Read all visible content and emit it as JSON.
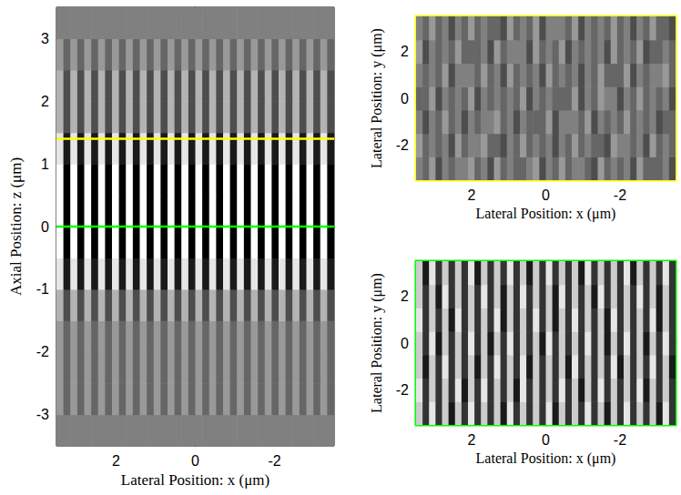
{
  "chart_data": [
    {
      "type": "heatmap",
      "xlabel": "Lateral Position: x (μm)",
      "ylabel": "Axial Position: z (μm)",
      "xlim": [
        3.5,
        -3.5
      ],
      "xticks": [
        2,
        0,
        -2
      ],
      "ylim": [
        -3.5,
        3.5
      ],
      "yticks": [
        -3,
        -2,
        -1,
        0,
        1,
        2,
        3
      ],
      "zlim": [
        0,
        10
      ],
      "grid": false,
      "hlines": [
        {
          "value": 1.4,
          "color": "#ffff00"
        },
        {
          "value": 0,
          "color": "#00ff00"
        }
      ],
      "cells": [
        [
          5,
          5,
          5,
          5,
          5,
          5,
          5,
          5,
          5,
          5,
          5,
          5,
          5,
          5,
          5,
          5,
          5,
          5,
          5,
          5,
          5,
          5,
          5,
          5,
          5,
          5,
          5,
          5,
          5,
          5,
          5,
          5,
          5,
          5,
          5,
          5,
          5,
          5,
          5,
          5
        ],
        [
          6,
          4,
          6,
          4,
          6,
          4,
          6,
          4,
          6,
          4,
          6,
          4,
          6,
          4,
          6,
          4,
          6,
          4,
          6,
          4,
          6,
          4,
          6,
          4,
          6,
          4,
          6,
          4,
          6,
          4,
          6,
          4,
          6,
          4,
          6,
          4,
          6,
          4,
          6,
          4
        ],
        [
          6,
          4,
          6,
          4,
          6,
          4,
          6,
          4,
          6,
          4,
          6,
          4,
          6,
          4,
          6,
          4,
          6,
          4,
          6,
          4,
          6,
          4,
          6,
          4,
          6,
          4,
          6,
          4,
          6,
          4,
          6,
          4,
          6,
          4,
          6,
          4,
          6,
          4,
          6,
          4
        ],
        [
          6,
          4,
          6,
          4,
          6,
          4,
          6,
          4,
          6,
          4,
          6,
          4,
          6,
          4,
          6,
          4,
          6,
          4,
          6,
          4,
          6,
          4,
          6,
          4,
          6,
          4,
          6,
          4,
          6,
          4,
          6,
          4,
          6,
          4,
          6,
          4,
          6,
          4,
          6,
          4
        ],
        [
          7,
          3,
          7,
          3,
          7,
          3,
          7,
          3,
          7,
          3,
          7,
          3,
          7,
          3,
          7,
          3,
          7,
          3,
          7,
          3,
          7,
          3,
          7,
          3,
          7,
          3,
          7,
          3,
          7,
          3,
          7,
          3,
          7,
          3,
          7,
          3,
          7,
          3,
          7,
          3
        ],
        [
          9,
          1,
          9,
          1,
          9,
          1,
          9,
          1,
          9,
          1,
          9,
          1,
          9,
          1,
          9,
          1,
          9,
          1,
          9,
          1,
          9,
          1,
          9,
          1,
          9,
          1,
          9,
          1,
          9,
          1,
          9,
          1,
          9,
          1,
          9,
          1,
          9,
          1,
          9,
          1
        ],
        [
          10,
          0,
          10,
          0,
          10,
          0,
          10,
          0,
          10,
          0,
          10,
          0,
          10,
          0,
          10,
          0,
          10,
          0,
          10,
          0,
          10,
          0,
          10,
          0,
          10,
          0,
          10,
          0,
          10,
          0,
          10,
          0,
          10,
          0,
          10,
          0,
          10,
          0,
          10,
          0
        ],
        [
          10,
          0,
          10,
          0,
          10,
          0,
          10,
          0,
          10,
          0,
          10,
          0,
          10,
          0,
          10,
          0,
          10,
          0,
          10,
          0,
          10,
          0,
          10,
          0,
          10,
          0,
          10,
          0,
          10,
          0,
          10,
          0,
          10,
          0,
          10,
          0,
          10,
          0,
          10,
          0
        ],
        [
          10,
          0,
          10,
          0,
          10,
          0,
          10,
          0,
          10,
          0,
          10,
          0,
          10,
          0,
          10,
          0,
          10,
          0,
          10,
          0,
          10,
          0,
          10,
          0,
          10,
          0,
          10,
          0,
          10,
          0,
          10,
          0,
          10,
          0,
          10,
          0,
          10,
          0,
          10,
          0
        ],
        [
          9,
          1,
          9,
          1,
          9,
          1,
          9,
          1,
          9,
          1,
          9,
          1,
          9,
          1,
          9,
          1,
          9,
          1,
          9,
          1,
          9,
          1,
          9,
          1,
          9,
          1,
          9,
          1,
          9,
          1,
          9,
          1,
          9,
          1,
          9,
          1,
          9,
          1,
          9,
          1
        ],
        [
          7,
          3,
          7,
          3,
          7,
          3,
          7,
          3,
          7,
          3,
          7,
          3,
          7,
          3,
          7,
          3,
          7,
          3,
          7,
          3,
          7,
          3,
          7,
          3,
          7,
          3,
          7,
          3,
          7,
          3,
          7,
          3,
          7,
          3,
          7,
          3,
          7,
          3,
          7,
          3
        ],
        [
          7,
          3,
          7,
          3,
          7,
          3,
          7,
          3,
          7,
          3,
          7,
          3,
          7,
          3,
          7,
          3,
          7,
          3,
          7,
          3,
          7,
          3,
          7,
          3,
          7,
          3,
          7,
          3,
          7,
          3,
          7,
          3,
          7,
          3,
          7,
          3,
          7,
          3,
          7,
          3
        ],
        [
          6,
          4,
          6,
          4,
          6,
          4,
          6,
          4,
          6,
          4,
          6,
          4,
          6,
          4,
          6,
          4,
          6,
          4,
          6,
          4,
          6,
          4,
          6,
          4,
          6,
          4,
          6,
          4,
          6,
          4,
          6,
          4,
          6,
          4,
          6,
          4,
          6,
          4,
          6,
          4
        ],
        [
          5,
          5,
          5,
          5,
          5,
          5,
          5,
          5,
          5,
          5,
          5,
          5,
          5,
          5,
          5,
          5,
          5,
          5,
          5,
          5,
          5,
          5,
          5,
          5,
          5,
          5,
          5,
          5,
          5,
          5,
          5,
          5,
          5,
          5,
          5,
          5,
          5,
          5,
          5,
          5
        ]
      ]
    },
    {
      "type": "heatmap",
      "xlabel": "Lateral Position: x (μm)",
      "ylabel": "Lateral Position: y (μm)",
      "xlim": [
        3.5,
        -3.5
      ],
      "xticks": [
        2,
        0,
        -2
      ],
      "ylim": [
        -3.5,
        3.5
      ],
      "yticks": [
        -2,
        0,
        2
      ],
      "zlim": [
        0,
        10
      ],
      "grid": false,
      "color": "#ffff00",
      "cells": [
        [
          5,
          4,
          6,
          3,
          5,
          4,
          5,
          5,
          6,
          4,
          5,
          3,
          6,
          4,
          5,
          4,
          4,
          5,
          6,
          3,
          5,
          4,
          6,
          4,
          5,
          5,
          4,
          3,
          6,
          4,
          5,
          4,
          5,
          3,
          6,
          4,
          4,
          4,
          5,
          3
        ],
        [
          6,
          4,
          5,
          4,
          5,
          3,
          6,
          4,
          5,
          5,
          6,
          4,
          4,
          3,
          5,
          4,
          6,
          4,
          5,
          4,
          5,
          3,
          5,
          4,
          6,
          4,
          5,
          4,
          4,
          3,
          6,
          5,
          5,
          4,
          5,
          3,
          6,
          4,
          5,
          4
        ],
        [
          5,
          3,
          5,
          4,
          6,
          4,
          5,
          3,
          5,
          4,
          5,
          5,
          6,
          4,
          5,
          3,
          5,
          4,
          4,
          4,
          6,
          3,
          5,
          5,
          5,
          4,
          6,
          3,
          5,
          4,
          5,
          4,
          6,
          4,
          5,
          4,
          5,
          3,
          4,
          4
        ],
        [
          4,
          4,
          6,
          3,
          5,
          4,
          5,
          4,
          6,
          3,
          5,
          4,
          5,
          4,
          5,
          4,
          6,
          3,
          5,
          4,
          5,
          4,
          4,
          4,
          6,
          3,
          5,
          4,
          6,
          5,
          5,
          3,
          5,
          4,
          6,
          4,
          5,
          4,
          5,
          3
        ],
        [
          5,
          4,
          5,
          4,
          6,
          3,
          5,
          5,
          5,
          4,
          6,
          4,
          5,
          3,
          6,
          4,
          5,
          4,
          5,
          3,
          6,
          4,
          5,
          4,
          5,
          3,
          5,
          4,
          6,
          4,
          4,
          4,
          6,
          3,
          5,
          4,
          5,
          5,
          6,
          4
        ],
        [
          6,
          3,
          5,
          4,
          5,
          4,
          6,
          4,
          4,
          4,
          5,
          3,
          6,
          4,
          5,
          5,
          5,
          3,
          6,
          4,
          5,
          4,
          6,
          3,
          5,
          4,
          5,
          4,
          5,
          3,
          6,
          4,
          5,
          4,
          6,
          3,
          4,
          4,
          5,
          4
        ],
        [
          5,
          4,
          6,
          4,
          5,
          3,
          5,
          4,
          6,
          4,
          5,
          4,
          4,
          3,
          6,
          4,
          5,
          4,
          6,
          3,
          5,
          5,
          5,
          4,
          6,
          3,
          5,
          4,
          5,
          4,
          6,
          4,
          5,
          3,
          5,
          4,
          6,
          4,
          4,
          3
        ]
      ]
    },
    {
      "type": "heatmap",
      "xlabel": "Lateral Position: x (μm)",
      "ylabel": "Lateral Position: y (μm)",
      "xlim": [
        3.5,
        -3.5
      ],
      "xticks": [
        2,
        0,
        -2
      ],
      "ylim": [
        -3.5,
        3.5
      ],
      "yticks": [
        -2,
        0,
        2
      ],
      "zlim": [
        0,
        10
      ],
      "grid": false,
      "color": "#00ff00",
      "cells": [
        [
          8,
          2,
          9,
          2,
          8,
          1,
          8,
          2,
          9,
          2,
          8,
          2,
          8,
          1,
          9,
          2,
          8,
          2,
          8,
          2,
          9,
          1,
          8,
          2,
          8,
          2,
          9,
          2,
          8,
          1,
          8,
          2,
          9,
          2,
          8,
          2,
          8,
          1,
          9,
          2
        ],
        [
          9,
          2,
          8,
          2,
          8,
          2,
          9,
          1,
          8,
          2,
          9,
          2,
          8,
          2,
          8,
          1,
          9,
          2,
          8,
          2,
          8,
          2,
          9,
          2,
          8,
          1,
          8,
          2,
          9,
          2,
          8,
          2,
          8,
          2,
          9,
          1,
          8,
          2,
          8,
          2
        ],
        [
          8,
          1,
          8,
          2,
          9,
          2,
          8,
          2,
          8,
          1,
          8,
          2,
          9,
          2,
          8,
          2,
          9,
          1,
          8,
          2,
          8,
          2,
          8,
          1,
          9,
          2,
          8,
          2,
          8,
          2,
          9,
          1,
          8,
          2,
          8,
          2,
          9,
          2,
          8,
          1
        ],
        [
          8,
          2,
          9,
          1,
          8,
          2,
          8,
          2,
          9,
          2,
          8,
          1,
          8,
          2,
          9,
          2,
          8,
          2,
          8,
          1,
          9,
          2,
          8,
          2,
          8,
          2,
          9,
          2,
          8,
          1,
          8,
          2,
          9,
          2,
          8,
          1,
          8,
          2,
          9,
          2
        ],
        [
          9,
          2,
          8,
          2,
          8,
          1,
          9,
          2,
          8,
          2,
          8,
          2,
          9,
          1,
          8,
          2,
          8,
          2,
          9,
          2,
          8,
          1,
          8,
          2,
          9,
          2,
          8,
          2,
          8,
          1,
          9,
          2,
          8,
          2,
          8,
          2,
          9,
          1,
          8,
          2
        ],
        [
          8,
          2,
          8,
          1,
          9,
          2,
          8,
          2,
          8,
          2,
          9,
          2,
          8,
          1,
          8,
          2,
          9,
          2,
          8,
          2,
          8,
          1,
          9,
          2,
          8,
          2,
          8,
          1,
          9,
          2,
          8,
          2,
          8,
          2,
          9,
          2,
          8,
          1,
          8,
          2
        ],
        [
          8,
          1,
          9,
          2,
          8,
          2,
          8,
          2,
          9,
          1,
          8,
          2,
          8,
          2,
          9,
          2,
          8,
          1,
          8,
          2,
          9,
          2,
          8,
          2,
          8,
          1,
          9,
          2,
          8,
          2,
          8,
          2,
          9,
          1,
          8,
          2,
          8,
          2,
          9,
          2
        ]
      ]
    }
  ]
}
